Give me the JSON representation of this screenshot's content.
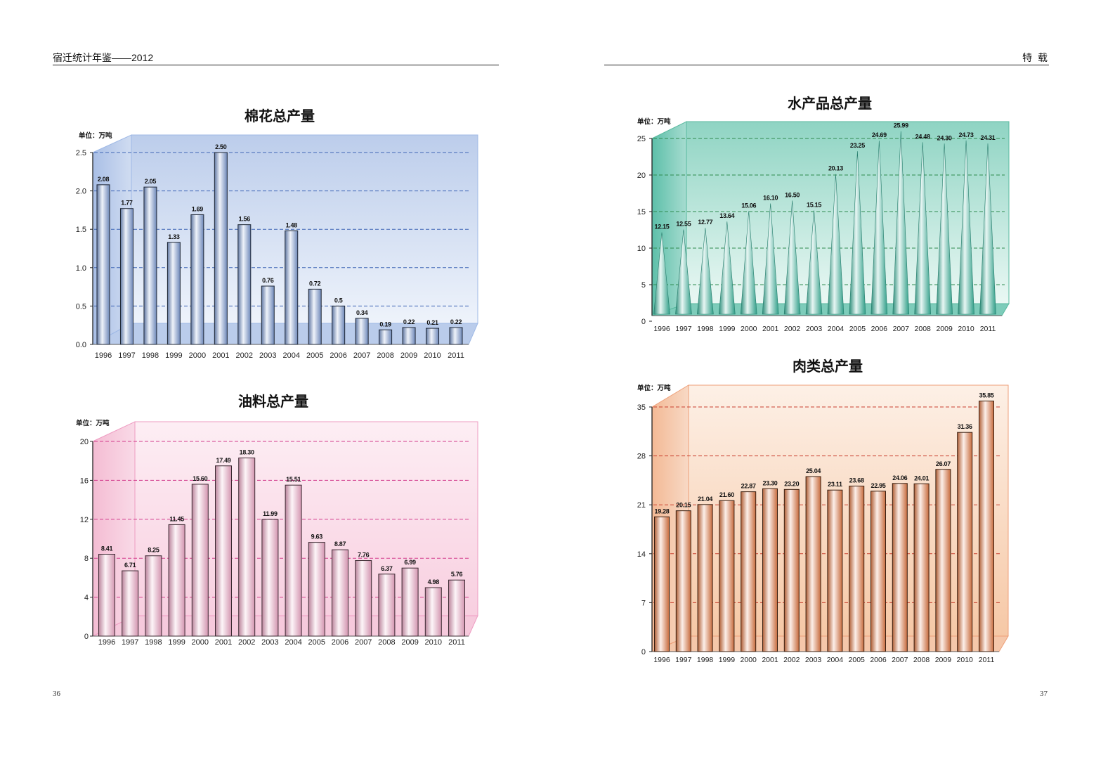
{
  "header": {
    "left_title": "宿迁统计年鉴——2012",
    "right_title": "特 载"
  },
  "page_numbers": {
    "left": "36",
    "right": "37"
  },
  "chart_data": [
    {
      "type": "bar",
      "title": "棉花总产量",
      "unit": "单位：万吨",
      "categories": [
        "1996",
        "1997",
        "1998",
        "1999",
        "2000",
        "2001",
        "2002",
        "2003",
        "2004",
        "2005",
        "2006",
        "2007",
        "2008",
        "2009",
        "2010",
        "2011"
      ],
      "values": [
        2.08,
        1.77,
        2.05,
        1.33,
        1.69,
        2.5,
        1.56,
        0.76,
        1.48,
        0.72,
        0.5,
        0.34,
        0.19,
        0.22,
        0.21,
        0.22
      ],
      "data_labels": [
        "2.08",
        "1.77",
        "2.05",
        "1.33",
        "1.69",
        "2.50",
        "1.56",
        "0.76",
        "1.48",
        "0.72",
        "0.5",
        "0.34",
        "0.19",
        "0.22",
        "0.21",
        "0.22"
      ],
      "yticks": [
        "0.0",
        "0.5",
        "1.0",
        "1.5",
        "2.0",
        "2.5"
      ],
      "ylim": [
        0,
        2.5
      ],
      "grid": true,
      "colors": {
        "bar": "#7d9bd2",
        "panel_top": "#bccdeb",
        "panel_bottom": "#eef3fb",
        "side": "#a9bfe6",
        "grid": "#3f66b5",
        "edge": "#9fb9e6"
      }
    },
    {
      "type": "bar",
      "title": "油料总产量",
      "unit": "单位：万吨",
      "categories": [
        "1996",
        "1997",
        "1998",
        "1999",
        "2000",
        "2001",
        "2002",
        "2003",
        "2004",
        "2005",
        "2006",
        "2007",
        "2008",
        "2009",
        "2010",
        "2011"
      ],
      "values": [
        8.41,
        6.71,
        8.25,
        11.45,
        15.6,
        17.49,
        18.3,
        11.99,
        15.51,
        9.63,
        8.87,
        7.76,
        6.37,
        6.99,
        4.98,
        5.76
      ],
      "data_labels": [
        "8.41",
        "6.71",
        "8.25",
        "11.45",
        "15.60",
        "17.49",
        "18.30",
        "11.99",
        "15.51",
        "9.63",
        "8.87",
        "7.76",
        "6.37",
        "6.99",
        "4.98",
        "5.76"
      ],
      "yticks": [
        "0",
        "4",
        "8",
        "12",
        "16",
        "20"
      ],
      "ylim": [
        0,
        20
      ],
      "grid": true,
      "colors": {
        "bar": "#f0a9c8",
        "panel_top": "#fdeef4",
        "panel_bottom": "#f8cfe0",
        "side": "#f4bcd3",
        "grid": "#d23b8c",
        "edge": "#ee9cc2"
      }
    },
    {
      "type": "bar",
      "title": "水产品总产量",
      "unit": "单位：万吨",
      "categories": [
        "1996",
        "1997",
        "1998",
        "1999",
        "2000",
        "2001",
        "2002",
        "2003",
        "2004",
        "2005",
        "2006",
        "2007",
        "2008",
        "2009",
        "2010",
        "2011"
      ],
      "values": [
        12.15,
        12.55,
        12.77,
        13.64,
        15.06,
        16.1,
        16.5,
        15.15,
        20.13,
        23.25,
        24.69,
        25.99,
        24.48,
        24.3,
        24.73,
        24.31
      ],
      "data_labels": [
        "12.15",
        "12.55",
        "12.77",
        "13.64",
        "15.06",
        "16.10",
        "16.50",
        "15.15",
        "20.13",
        "23.25",
        "24.69",
        "25.99",
        "24.48",
        "24.30",
        "24.73",
        "24.31"
      ],
      "yticks": [
        "0",
        "5",
        "10",
        "15",
        "20",
        "25"
      ],
      "ylim": [
        0,
        25
      ],
      "grid": true,
      "colors": {
        "bar": "#36b39a",
        "panel_top": "#8fd4c3",
        "panel_bottom": "#eaf8f4",
        "side": "#5dbfa9",
        "grid": "#2e8b4f",
        "edge": "#58b99f"
      }
    },
    {
      "type": "bar",
      "title": "肉类总产量",
      "unit": "单位：万吨",
      "categories": [
        "1996",
        "1997",
        "1998",
        "1999",
        "2000",
        "2001",
        "2002",
        "2003",
        "2004",
        "2005",
        "2006",
        "2007",
        "2008",
        "2009",
        "2010",
        "2011"
      ],
      "values": [
        19.28,
        20.15,
        21.04,
        21.6,
        22.87,
        23.3,
        23.2,
        25.04,
        23.11,
        23.68,
        22.95,
        24.06,
        24.01,
        26.07,
        31.36,
        35.85
      ],
      "data_labels": [
        "19.28",
        "20.15",
        "21.04",
        "21.60",
        "22.87",
        "23.30",
        "23.20",
        "25.04",
        "23.11",
        "23.68",
        "22.95",
        "24.06",
        "24.01",
        "26.07",
        "31.36",
        "35.85"
      ],
      "yticks": [
        "0",
        "7",
        "14",
        "21",
        "28",
        "35"
      ],
      "ylim": [
        0,
        35
      ],
      "grid": true,
      "colors": {
        "bar": "#e27a45",
        "panel_top": "#fdf0e6",
        "panel_bottom": "#f6c8a6",
        "side": "#f3b995",
        "grid": "#c9402f",
        "edge": "#ee9f78"
      }
    }
  ]
}
